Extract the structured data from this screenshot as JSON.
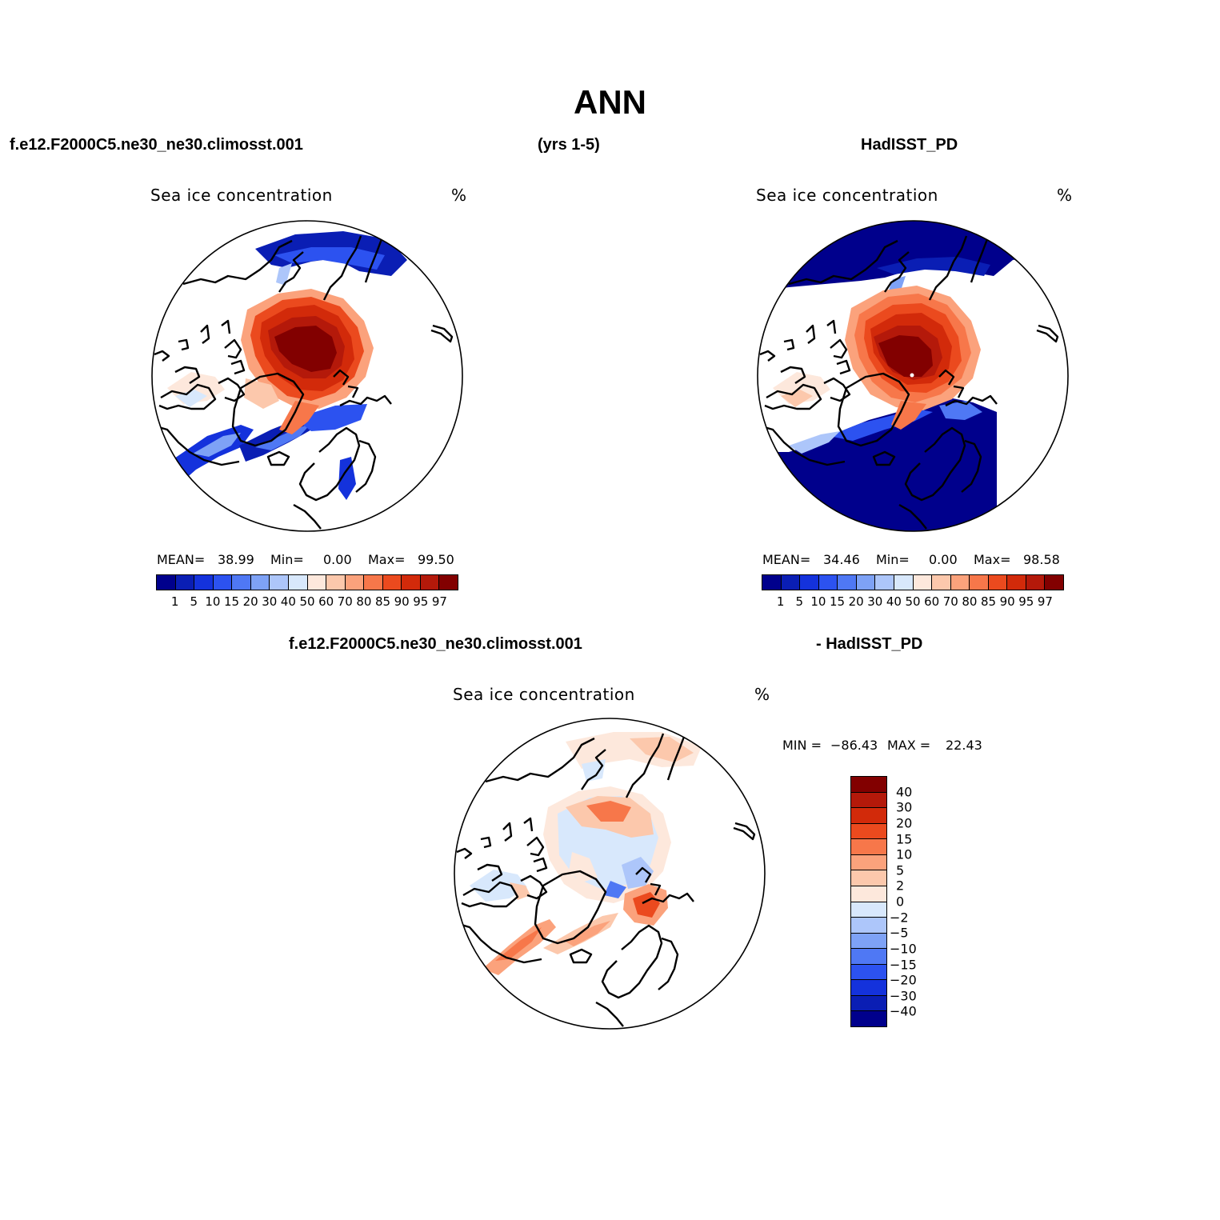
{
  "title": "ANN",
  "header": {
    "case_name": "f.e12.F2000C5.ne30_ne30.climosst.001",
    "years": "(yrs 1-5)",
    "obs_name": "HadISST_PD"
  },
  "diff_header": {
    "case_name": "f.e12.F2000C5.ne30_ne30.climosst.001",
    "obs_name": "- HadISST_PD"
  },
  "panels": {
    "model": {
      "variable": "Sea ice concentration",
      "units": "%",
      "mean_label": "MEAN=",
      "mean": "38.99",
      "min_label": "Min=",
      "min": "0.00",
      "max_label": "Max=",
      "max": "99.50"
    },
    "obs": {
      "variable": "Sea ice concentration",
      "units": "%",
      "mean_label": "MEAN=",
      "mean": "34.46",
      "min_label": "Min=",
      "min": "0.00",
      "max_label": "Max=",
      "max": "98.58"
    },
    "diff": {
      "variable": "Sea ice concentration",
      "units": "%",
      "min_label": "MIN =",
      "min": "−86.43",
      "max_label": "MAX =",
      "max": "22.43"
    }
  },
  "colorbar_abs": {
    "levels": [
      "1",
      "5",
      "10",
      "15",
      "20",
      "30",
      "40",
      "50",
      "60",
      "70",
      "80",
      "85",
      "90",
      "95",
      "97"
    ],
    "colors": [
      "#00008c",
      "#0a1eb4",
      "#1432dc",
      "#2c52f0",
      "#4f78f4",
      "#7ea2f6",
      "#adc6fa",
      "#d8e8fc",
      "#fde8dc",
      "#fcc8ac",
      "#fba27c",
      "#f7774a",
      "#eb4a1e",
      "#d22a0a",
      "#b4190a",
      "#820000"
    ]
  },
  "colorbar_diff": {
    "levels": [
      "40",
      "30",
      "20",
      "15",
      "10",
      "5",
      "2",
      "0",
      "−2",
      "−5",
      "−10",
      "−15",
      "−20",
      "−30",
      "−40"
    ],
    "colors": [
      "#820000",
      "#b4190a",
      "#d22a0a",
      "#eb4a1e",
      "#f7774a",
      "#fba27c",
      "#fcc8ac",
      "#fde8dc",
      "#d8e8fc",
      "#adc6fa",
      "#7ea2f6",
      "#4f78f4",
      "#2c52f0",
      "#1432dc",
      "#0a1eb4",
      "#00008c"
    ]
  }
}
